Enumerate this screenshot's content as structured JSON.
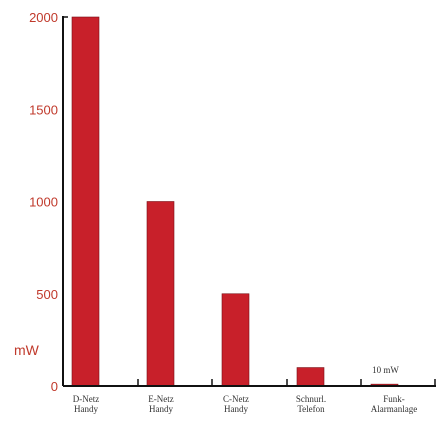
{
  "chart_data": {
    "type": "bar",
    "categories": [
      [
        "D-Netz",
        "Handy"
      ],
      [
        "E-Netz",
        "Handy"
      ],
      [
        "C-Netz",
        "Handy"
      ],
      [
        "Schnurl.",
        "Telefon"
      ],
      [
        "Funk-",
        "Alarmanlage"
      ]
    ],
    "values": [
      2000,
      1000,
      500,
      100,
      10
    ],
    "ylim": [
      0,
      2000
    ],
    "yticks": [
      0,
      500,
      1000,
      1500,
      2000
    ],
    "ylabel": "mW",
    "annotations": [
      {
        "category_index": 4,
        "text": "10 mW"
      }
    ],
    "grid": false,
    "colors": {
      "bar": "#c8202a",
      "bar_edge": "#7a1016",
      "axis": "#111111",
      "tick_text": "#c0392b"
    }
  }
}
